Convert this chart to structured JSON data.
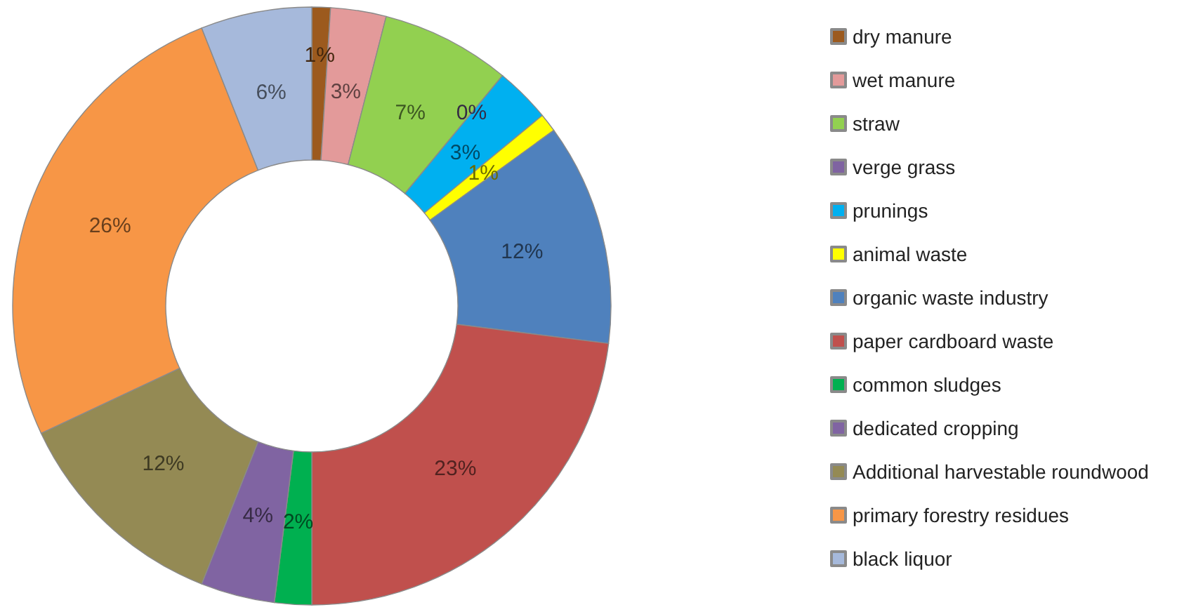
{
  "chart_data": {
    "type": "donut",
    "categories": [
      "dry manure",
      "wet manure",
      "straw",
      "verge grass",
      "prunings",
      "animal waste",
      "organic waste industry",
      "paper cardboard waste",
      "common sludges",
      "dedicated cropping",
      "Additional harvestable roundwood",
      "primary forestry residues",
      "black liquor"
    ],
    "values": [
      1,
      3,
      7,
      0,
      3,
      1,
      12,
      23,
      2,
      4,
      12,
      26,
      6
    ],
    "value_labels": [
      "1%",
      "3%",
      "7%",
      "0%",
      "3%",
      "1%",
      "12%",
      "23%",
      "2%",
      "4%",
      "12%",
      "26%",
      "6%"
    ],
    "colors": [
      "#9c5a1e",
      "#e39a9a",
      "#92d050",
      "#7f63a1",
      "#00b0f0",
      "#ffff00",
      "#4f81bd",
      "#c0504d",
      "#00b050",
      "#8064a2",
      "#948a54",
      "#f79646",
      "#a6b9db"
    ],
    "legend": "right"
  }
}
